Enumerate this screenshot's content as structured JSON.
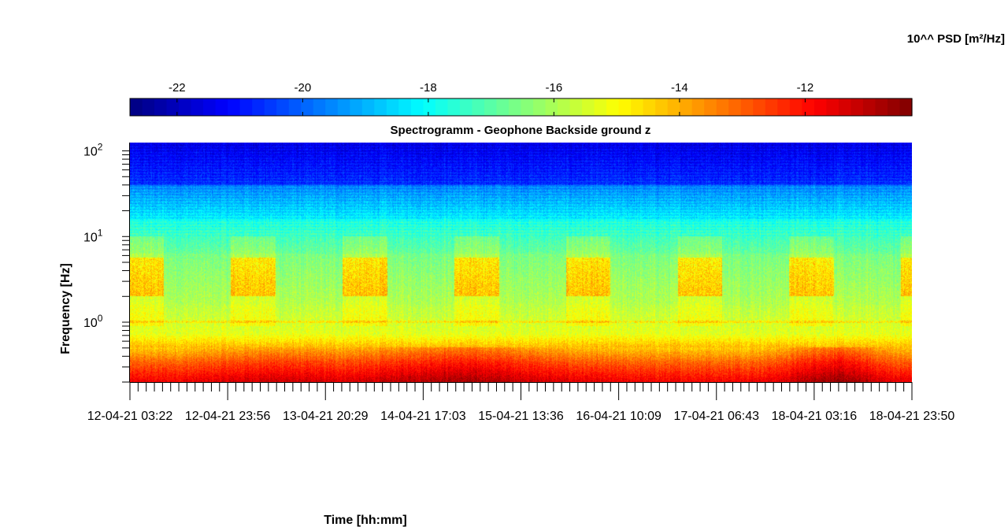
{
  "chart_data": {
    "type": "heatmap",
    "title": "Spectrogramm - Geophone Backside ground z",
    "xlabel": "Time [hh:mm]",
    "ylabel": "Frequency [Hz]",
    "y_scale": "log",
    "ylim": [
      0.2,
      125
    ],
    "x_tick_labels": [
      "12-04-21 03:22",
      "12-04-21 23:56",
      "13-04-21 20:29",
      "14-04-21 17:03",
      "15-04-21 13:36",
      "16-04-21 10:09",
      "17-04-21 06:43",
      "18-04-21 03:16",
      "18-04-21 23:50"
    ],
    "y_ticks": [
      {
        "value": 1,
        "base": "10",
        "exp": "0"
      },
      {
        "value": 10,
        "base": "10",
        "exp": "1"
      },
      {
        "value": 100,
        "base": "10",
        "exp": "2"
      }
    ],
    "colorbar": {
      "label": "10^^ PSD [m²/Hz]",
      "range": [
        -22.75,
        -10.3
      ],
      "ticks": [
        -22,
        -20,
        -18,
        -16,
        -14,
        -12
      ],
      "tick_labels": [
        "-22",
        "-20",
        "-18",
        "-16",
        "-14",
        "-12"
      ],
      "colormap": "jet",
      "steps": 64,
      "location": "top"
    },
    "description_bands": [
      {
        "freq_range": [
          0.2,
          0.35
        ],
        "log_psd": -11.0
      },
      {
        "freq_range": [
          0.35,
          0.7
        ],
        "log_psd": -12.5
      },
      {
        "freq_range": [
          0.7,
          1.5
        ],
        "log_psd": -15.0
      },
      {
        "freq_range": [
          1.5,
          6.0
        ],
        "log_psd": -14.5
      },
      {
        "freq_range": [
          6.0,
          20
        ],
        "log_psd": -17.0
      },
      {
        "freq_range": [
          20,
          50
        ],
        "log_psd": -19.0
      },
      {
        "freq_range": [
          50,
          125
        ],
        "log_psd": -21.5
      }
    ]
  }
}
